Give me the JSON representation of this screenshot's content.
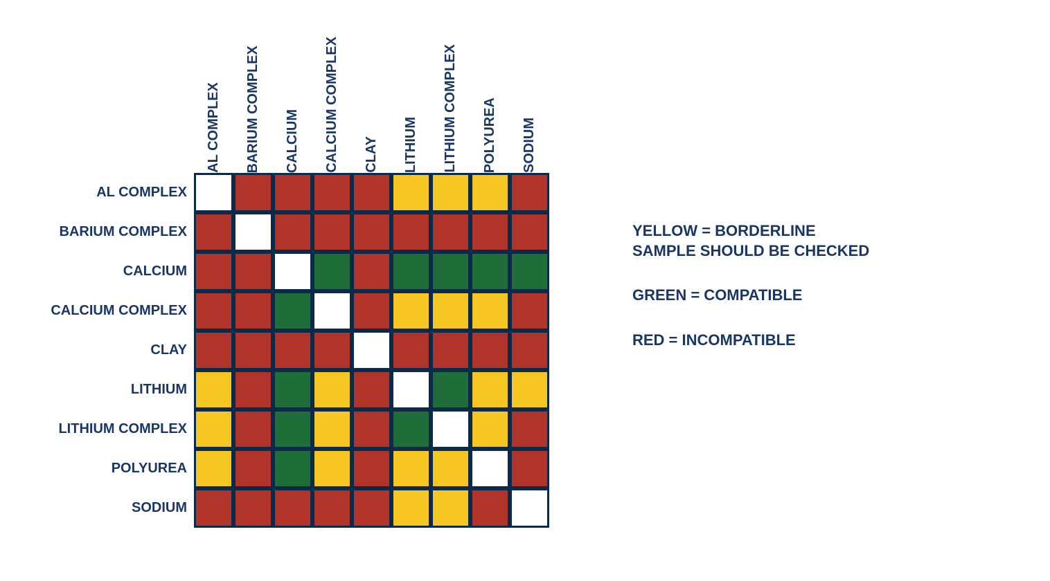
{
  "matrix": {
    "type": "heatmap",
    "labels": [
      "AL COMPLEX",
      "BARIUM COMPLEX",
      "CALCIUM",
      "CALCIUM COMPLEX",
      "CLAY",
      "LITHIUM",
      "LITHIUM COMPLEX",
      "POLYUREA",
      "SODIUM"
    ],
    "cells": [
      [
        "W",
        "R",
        "R",
        "R",
        "R",
        "Y",
        "Y",
        "Y",
        "R"
      ],
      [
        "R",
        "W",
        "R",
        "R",
        "R",
        "R",
        "R",
        "R",
        "R"
      ],
      [
        "R",
        "R",
        "W",
        "G",
        "R",
        "G",
        "G",
        "G",
        "G"
      ],
      [
        "R",
        "R",
        "G",
        "W",
        "R",
        "Y",
        "Y",
        "Y",
        "R"
      ],
      [
        "R",
        "R",
        "R",
        "R",
        "W",
        "R",
        "R",
        "R",
        "R"
      ],
      [
        "Y",
        "R",
        "G",
        "Y",
        "R",
        "W",
        "G",
        "Y",
        "Y"
      ],
      [
        "Y",
        "R",
        "G",
        "Y",
        "R",
        "G",
        "W",
        "Y",
        "R"
      ],
      [
        "Y",
        "R",
        "G",
        "Y",
        "R",
        "Y",
        "Y",
        "W",
        "R"
      ],
      [
        "R",
        "R",
        "R",
        "R",
        "R",
        "Y",
        "Y",
        "R",
        "W"
      ]
    ],
    "color_map": {
      "W": "#ffffff",
      "R": "#b1342a",
      "G": "#1f6e3a",
      "Y": "#f6c724"
    },
    "cell_size": 57,
    "border_color": "#0b2a4a",
    "border_width": 3,
    "label_color": "#1a3667",
    "label_fontsize": 20,
    "col_header_height": 230,
    "row_header_width": 260
  },
  "legend": {
    "text_color": "#1a3667",
    "fontsize": 22,
    "items": [
      [
        "YELLOW = BORDERLINE",
        "SAMPLE SHOULD BE CHECKED"
      ],
      [
        "GREEN = COMPATIBLE"
      ],
      [
        "RED = INCOMPATIBLE"
      ]
    ]
  }
}
